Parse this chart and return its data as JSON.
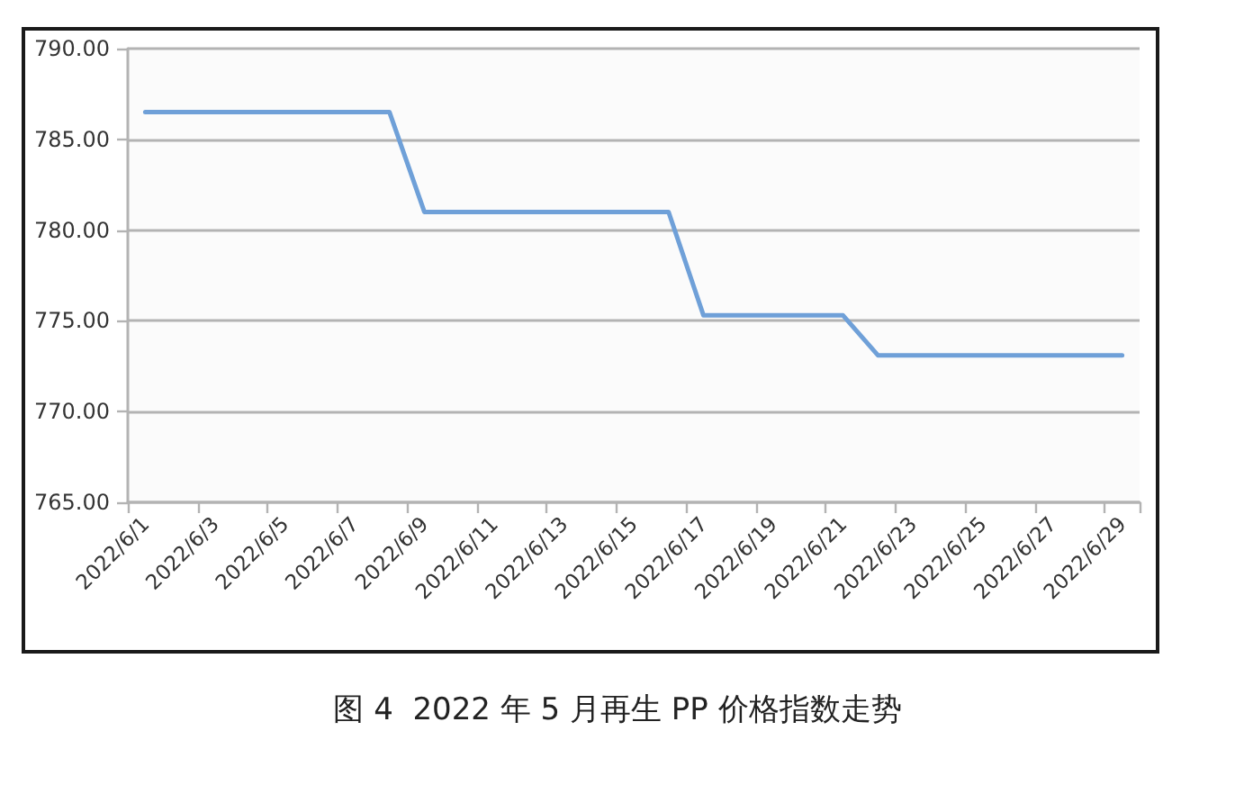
{
  "chart_data": {
    "type": "line",
    "title": "图 4  2022 年 5 月再生 PP 价格指数走势",
    "categories": [
      "2022/6/1",
      null,
      "2022/6/3",
      null,
      "2022/6/5",
      null,
      "2022/6/7",
      null,
      "2022/6/9",
      null,
      "2022/6/11",
      null,
      "2022/6/13",
      null,
      "2022/6/15",
      null,
      "2022/6/17",
      null,
      "2022/6/19",
      null,
      "2022/6/21",
      null,
      "2022/6/23",
      null,
      "2022/6/25",
      null,
      "2022/6/27",
      null,
      "2022/6/29"
    ],
    "series": [
      {
        "color": "#6fa0d8",
        "values": [
          786.5,
          786.5,
          786.5,
          786.5,
          786.5,
          786.5,
          786.5,
          786.5,
          781.0,
          781.0,
          781.0,
          781.0,
          781.0,
          781.0,
          781.0,
          781.0,
          775.3,
          775.3,
          775.3,
          775.3,
          775.3,
          773.1,
          773.1,
          773.1,
          773.1,
          773.1,
          773.1,
          773.1,
          773.1
        ]
      }
    ],
    "ylim": [
      765,
      790
    ],
    "yticks": [
      {
        "value": 765,
        "label": "765.00"
      },
      {
        "value": 770,
        "label": "770.00"
      },
      {
        "value": 775,
        "label": "775.00"
      },
      {
        "value": 780,
        "label": "780.00"
      },
      {
        "value": 785,
        "label": "785.00"
      },
      {
        "value": 790,
        "label": "790.00"
      }
    ],
    "grid": "y",
    "marker": "none"
  }
}
